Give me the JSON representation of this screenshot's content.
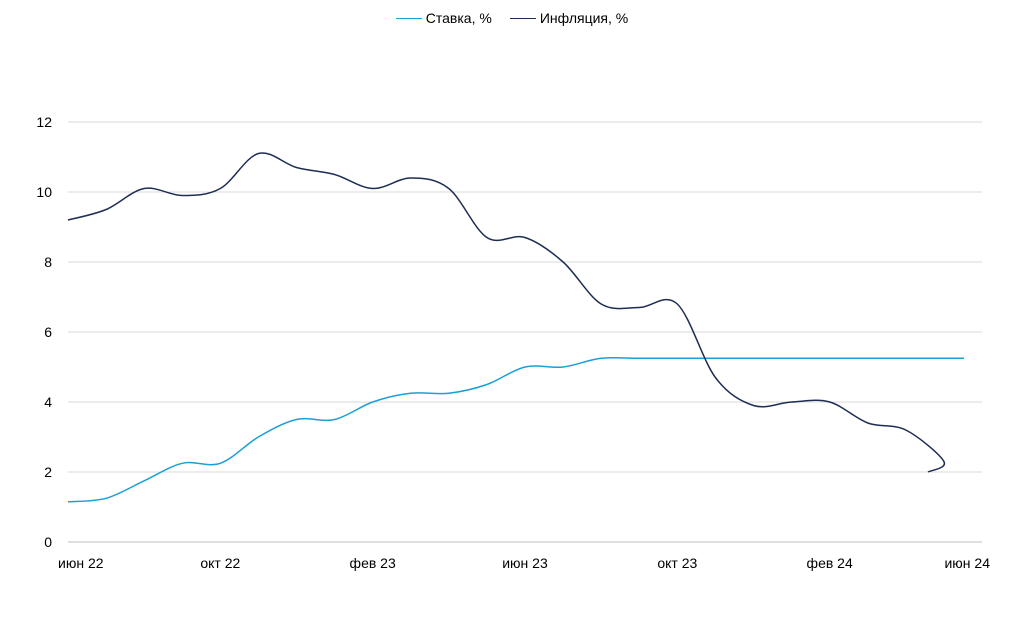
{
  "chart_data": {
    "type": "line",
    "title": "",
    "xlabel": "",
    "ylabel": "",
    "ylim": [
      0,
      12
    ],
    "yticks": [
      0,
      2,
      4,
      6,
      8,
      10,
      12
    ],
    "grid": true,
    "legend_position": "top-center",
    "x_tick_labels": [
      "июн 22",
      "окт 22",
      "фев 23",
      "июн 23",
      "окт 23",
      "фев 24",
      "июн 24"
    ],
    "x_months": [
      "июн 22",
      "июл 22",
      "авг 22",
      "сен 22",
      "окт 22",
      "ноя 22",
      "дек 22",
      "янв 23",
      "фев 23",
      "мар 23",
      "апр 23",
      "май 23",
      "июн 23",
      "июл 23",
      "авг 23",
      "сен 23",
      "окт 23",
      "ноя 23",
      "дек 23",
      "янв 24",
      "фев 24",
      "мар 24",
      "апр 24",
      "май 24",
      "июн 24"
    ],
    "series": [
      {
        "name": "Ставка, %",
        "color": "#1a9fd9",
        "values": [
          1.15,
          1.25,
          1.75,
          2.25,
          2.25,
          3.0,
          3.5,
          3.5,
          4.0,
          4.25,
          4.25,
          4.5,
          5.0,
          5.0,
          5.25,
          5.25,
          5.25,
          5.25,
          5.25,
          5.25,
          5.25,
          5.25,
          5.25,
          5.25,
          5.25
        ]
      },
      {
        "name": "Инфляция, %",
        "color": "#1f2d55",
        "values": [
          9.2,
          9.5,
          10.1,
          9.9,
          10.1,
          11.1,
          10.7,
          10.5,
          10.1,
          10.4,
          10.1,
          8.7,
          8.7,
          8.0,
          6.8,
          6.7,
          6.8,
          4.7,
          3.9,
          4.0,
          4.0,
          3.4,
          3.2,
          2.3,
          2.0
        ]
      }
    ]
  }
}
